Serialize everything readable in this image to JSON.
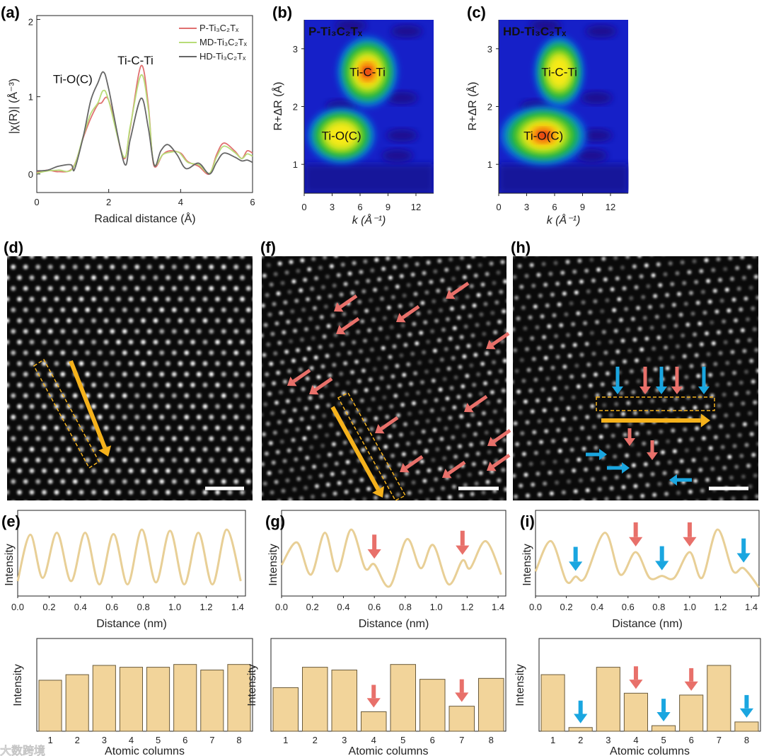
{
  "watermark": "大数跨境",
  "chart_data": [
    {
      "id": "a",
      "type": "line",
      "panel_label": "(a)",
      "xlabel": "Radical distance (Å)",
      "ylabel": "|χ(R)| (Å⁻³)",
      "xlim": [
        0,
        6
      ],
      "ylim": [
        -0.24,
        2.05
      ],
      "xticks": [
        "0",
        "2",
        "4",
        "6"
      ],
      "yticks": [
        "0",
        "1",
        "2"
      ],
      "annotations": [
        {
          "text": "Ti-O(C)",
          "x": 1.0,
          "y": 1.45
        },
        {
          "text": "Ti-C-Ti",
          "x": 2.6,
          "y": 1.6
        }
      ],
      "series": [
        {
          "name": "P-Ti₃C₂Tₓ",
          "color": "#e07070",
          "points": [
            [
              0,
              0.02
            ],
            [
              0.3,
              0.05
            ],
            [
              0.6,
              0.03
            ],
            [
              1.0,
              0.08
            ],
            [
              1.3,
              0.48
            ],
            [
              1.5,
              0.72
            ],
            [
              1.7,
              0.9
            ],
            [
              1.8,
              0.92
            ],
            [
              1.95,
              0.99
            ],
            [
              2.1,
              0.8
            ],
            [
              2.42,
              0.2
            ],
            [
              2.6,
              0.6
            ],
            [
              2.9,
              1.4
            ],
            [
              3.1,
              0.9
            ],
            [
              3.25,
              0.12
            ],
            [
              3.5,
              0.25
            ],
            [
              3.7,
              0.3
            ],
            [
              4.0,
              0.27
            ],
            [
              4.2,
              0.16
            ],
            [
              4.5,
              0.1
            ],
            [
              4.8,
              0.0
            ],
            [
              5.0,
              0.25
            ],
            [
              5.2,
              0.4
            ],
            [
              5.5,
              0.3
            ],
            [
              5.7,
              0.2
            ],
            [
              5.85,
              0.3
            ],
            [
              6,
              0.27
            ]
          ]
        },
        {
          "name": "MD-Ti₃C₂Tₓ",
          "color": "#b8dc78",
          "points": [
            [
              0,
              0.01
            ],
            [
              0.3,
              0.04
            ],
            [
              0.6,
              0.05
            ],
            [
              1.0,
              0.07
            ],
            [
              1.3,
              0.5
            ],
            [
              1.5,
              0.78
            ],
            [
              1.7,
              0.92
            ],
            [
              1.85,
              1.08
            ],
            [
              2.0,
              0.95
            ],
            [
              2.42,
              0.22
            ],
            [
              2.6,
              0.62
            ],
            [
              2.9,
              1.28
            ],
            [
              3.1,
              0.85
            ],
            [
              3.25,
              0.14
            ],
            [
              3.5,
              0.25
            ],
            [
              3.7,
              0.28
            ],
            [
              3.95,
              0.28
            ],
            [
              4.2,
              0.15
            ],
            [
              4.5,
              0.12
            ],
            [
              4.8,
              0.01
            ],
            [
              5.0,
              0.22
            ],
            [
              5.2,
              0.36
            ],
            [
              5.5,
              0.28
            ],
            [
              5.7,
              0.2
            ],
            [
              5.85,
              0.26
            ],
            [
              6,
              0.23
            ]
          ]
        },
        {
          "name": "HD-Ti₃C₂Tₓ",
          "color": "#666666",
          "points": [
            [
              0,
              0.04
            ],
            [
              0.3,
              0.05
            ],
            [
              0.6,
              0.1
            ],
            [
              0.95,
              0.12
            ],
            [
              1.05,
              0.06
            ],
            [
              1.3,
              0.5
            ],
            [
              1.5,
              0.95
            ],
            [
              1.7,
              1.18
            ],
            [
              1.85,
              1.32
            ],
            [
              2.0,
              1.1
            ],
            [
              2.43,
              0.14
            ],
            [
              2.6,
              0.45
            ],
            [
              2.9,
              0.98
            ],
            [
              3.1,
              0.6
            ],
            [
              3.27,
              0.11
            ],
            [
              3.45,
              0.3
            ],
            [
              3.65,
              0.38
            ],
            [
              3.9,
              0.25
            ],
            [
              4.15,
              0.07
            ],
            [
              4.5,
              0.14
            ],
            [
              4.8,
              0.0
            ],
            [
              5.0,
              0.15
            ],
            [
              5.2,
              0.27
            ],
            [
              5.5,
              0.22
            ],
            [
              5.7,
              0.17
            ],
            [
              5.85,
              0.18
            ],
            [
              6,
              0.15
            ]
          ]
        }
      ]
    },
    {
      "id": "b",
      "type": "heatmap",
      "panel_label": "(b)",
      "title": "P-Ti₃C₂Tₓ",
      "xlabel": "k (Å⁻¹)",
      "ylabel": "R+ΔR (Å)",
      "xlim": [
        0,
        13.9
      ],
      "ylim": [
        0.5,
        3.5
      ],
      "xticks": [
        "0",
        "3",
        "6",
        "9",
        "12"
      ],
      "yticks": [
        "1",
        "2",
        "3"
      ],
      "peaks": [
        {
          "label": "Ti-C-Ti",
          "k": 6.8,
          "R": 2.6,
          "intensity": 1.0,
          "k_width": 3.2,
          "R_width": 0.38
        },
        {
          "label": "Ti-O(C)",
          "k": 4.0,
          "R": 1.5,
          "intensity": 0.62,
          "k_width": 3.6,
          "R_width": 0.3
        }
      ]
    },
    {
      "id": "c",
      "type": "heatmap",
      "panel_label": "(c)",
      "title": "HD-Ti₃C₂Tₓ",
      "xlabel": "k (Å⁻¹)",
      "ylabel": "R+ΔR (Å)",
      "xlim": [
        0,
        13.9
      ],
      "ylim": [
        0.5,
        3.5
      ],
      "xticks": [
        "0",
        "3",
        "6",
        "9",
        "12"
      ],
      "yticks": [
        "1",
        "2",
        "3"
      ],
      "peaks": [
        {
          "label": "Ti-C-Ti",
          "k": 6.5,
          "R": 2.6,
          "intensity": 0.72,
          "k_width": 2.6,
          "R_width": 0.38
        },
        {
          "label": "Ti-O(C)",
          "k": 4.8,
          "R": 1.5,
          "intensity": 1.0,
          "k_width": 4.6,
          "R_width": 0.32
        }
      ]
    },
    {
      "id": "e",
      "type": "line",
      "panel_label": "(e)",
      "xlabel": "Distance (nm)",
      "ylabel": "Intensity",
      "xlim": [
        0,
        1.45
      ],
      "xticks": [
        "0.0",
        "0.2",
        "0.4",
        "0.6",
        "0.8",
        "1.0",
        "1.2",
        "1.4"
      ],
      "color": "#e8cf96",
      "points": [
        [
          0,
          0.1
        ],
        [
          0.08,
          0.82
        ],
        [
          0.16,
          0.15
        ],
        [
          0.25,
          0.85
        ],
        [
          0.34,
          0.1
        ],
        [
          0.43,
          0.85
        ],
        [
          0.52,
          0.05
        ],
        [
          0.61,
          0.83
        ],
        [
          0.7,
          0.05
        ],
        [
          0.79,
          0.9
        ],
        [
          0.88,
          0.08
        ],
        [
          0.97,
          0.88
        ],
        [
          1.06,
          0.05
        ],
        [
          1.15,
          0.85
        ],
        [
          1.24,
          0.05
        ],
        [
          1.33,
          0.9
        ],
        [
          1.42,
          0.1
        ]
      ],
      "arrows": []
    },
    {
      "id": "g",
      "type": "line",
      "panel_label": "(g)",
      "xlabel": "Distance (nm)",
      "ylabel": "Intensity",
      "xlim": [
        0,
        1.45
      ],
      "xticks": [
        "0.0",
        "0.2",
        "0.4",
        "0.6",
        "0.8",
        "1.0",
        "1.2",
        "1.4"
      ],
      "color": "#e8cf96",
      "points": [
        [
          0,
          0.35
        ],
        [
          0.1,
          0.7
        ],
        [
          0.19,
          0.2
        ],
        [
          0.28,
          0.85
        ],
        [
          0.36,
          0.25
        ],
        [
          0.45,
          0.9
        ],
        [
          0.54,
          0.3
        ],
        [
          0.6,
          0.36
        ],
        [
          0.7,
          0.02
        ],
        [
          0.81,
          0.75
        ],
        [
          0.9,
          0.3
        ],
        [
          0.98,
          0.66
        ],
        [
          1.08,
          0.05
        ],
        [
          1.17,
          0.42
        ],
        [
          1.22,
          0.3
        ],
        [
          1.32,
          0.72
        ],
        [
          1.42,
          0.2
        ]
      ],
      "arrows": [
        {
          "x": 0.6,
          "color": "red"
        },
        {
          "x": 1.17,
          "color": "red"
        }
      ]
    },
    {
      "id": "i",
      "type": "line",
      "panel_label": "(i)",
      "xlabel": "Distance (nm)",
      "ylabel": "Intensity",
      "xlim": [
        0,
        1.45
      ],
      "xticks": [
        "0.0",
        "0.2",
        "0.4",
        "0.6",
        "0.8",
        "1.0",
        "1.2",
        "1.4"
      ],
      "color": "#e8cf96",
      "points": [
        [
          0,
          0.25
        ],
        [
          0.1,
          0.72
        ],
        [
          0.2,
          0.1
        ],
        [
          0.26,
          0.17
        ],
        [
          0.32,
          0.15
        ],
        [
          0.45,
          0.85
        ],
        [
          0.55,
          0.2
        ],
        [
          0.65,
          0.55
        ],
        [
          0.74,
          0.15
        ],
        [
          0.82,
          0.18
        ],
        [
          0.9,
          0.15
        ],
        [
          1.0,
          0.55
        ],
        [
          1.08,
          0.15
        ],
        [
          1.18,
          0.9
        ],
        [
          1.28,
          0.26
        ],
        [
          1.35,
          0.3
        ],
        [
          1.45,
          0.0
        ]
      ],
      "arrows": [
        {
          "x": 0.26,
          "color": "blue"
        },
        {
          "x": 0.65,
          "color": "red"
        },
        {
          "x": 0.82,
          "color": "blue"
        },
        {
          "x": 1.0,
          "color": "red"
        },
        {
          "x": 1.35,
          "color": "blue"
        }
      ]
    },
    {
      "id": "e2",
      "type": "bar",
      "xlabel": "Atomic columns",
      "ylabel": "Intensity",
      "categories": [
        "1",
        "2",
        "3",
        "4",
        "5",
        "6",
        "7",
        "8"
      ],
      "values": [
        0.55,
        0.61,
        0.71,
        0.69,
        0.69,
        0.72,
        0.66,
        0.72
      ],
      "arrows": []
    },
    {
      "id": "g2",
      "type": "bar",
      "xlabel": "Atomic columns",
      "ylabel": "Intensity",
      "categories": [
        "1",
        "2",
        "3",
        "4",
        "5",
        "6",
        "7",
        "8"
      ],
      "values": [
        0.47,
        0.69,
        0.66,
        0.21,
        0.72,
        0.56,
        0.27,
        0.57
      ],
      "arrows": [
        {
          "category": 4,
          "color": "red"
        },
        {
          "category": 7,
          "color": "red"
        }
      ]
    },
    {
      "id": "i2",
      "type": "bar",
      "xlabel": "Atomic columns",
      "ylabel": "Intensity",
      "categories": [
        "1",
        "2",
        "3",
        "4",
        "5",
        "6",
        "7",
        "8"
      ],
      "values": [
        0.61,
        0.04,
        0.69,
        0.41,
        0.06,
        0.39,
        0.71,
        0.1
      ],
      "arrows": [
        {
          "category": 2,
          "color": "blue"
        },
        {
          "category": 4,
          "color": "red"
        },
        {
          "category": 5,
          "color": "blue"
        },
        {
          "category": 6,
          "color": "red"
        },
        {
          "category": 8,
          "color": "blue"
        }
      ]
    }
  ],
  "images": [
    {
      "id": "d",
      "panel_label": "(d)",
      "type": "HAADF-STEM"
    },
    {
      "id": "f",
      "panel_label": "(f)",
      "type": "HAADF-STEM"
    },
    {
      "id": "h",
      "panel_label": "(h)",
      "type": "HAADF-STEM"
    }
  ],
  "colors": {
    "red_arrow": "#e8706a",
    "blue_arrow": "#1aa6e0",
    "yellow_arrow": "#f5b21c",
    "bar_fill": "#f2d49a"
  }
}
